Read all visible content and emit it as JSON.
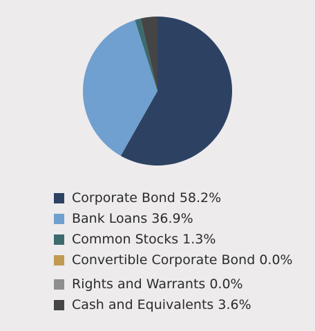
{
  "chart_data": {
    "type": "pie",
    "title": "",
    "slices": [
      {
        "label": "Corporate Bond",
        "value": 58.2,
        "display": "58.2%",
        "color": "#2d4263"
      },
      {
        "label": "Bank Loans",
        "value": 36.9,
        "display": "36.9%",
        "color": "#6fa0cf"
      },
      {
        "label": "Common Stocks",
        "value": 1.3,
        "display": "1.3%",
        "color": "#3c6b6e"
      },
      {
        "label": "Convertible Corporate Bond",
        "value": 0.0,
        "display": "0.0%",
        "color": "#c19a52"
      },
      {
        "label": "Rights and Warrants",
        "value": 0.0,
        "display": "0.0%",
        "color": "#8e8e8e"
      },
      {
        "label": "Cash and Equivalents",
        "value": 3.6,
        "display": "3.6%",
        "color": "#454545"
      }
    ],
    "legend_position": "bottom"
  }
}
